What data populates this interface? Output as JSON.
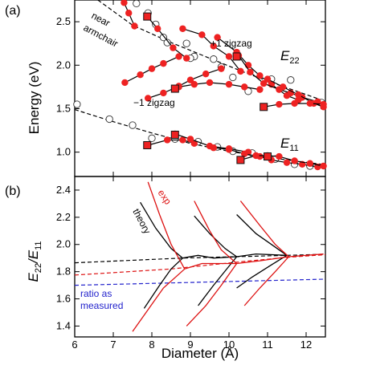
{
  "chart_data": [
    {
      "panel_label": "(a)",
      "type": "scatter",
      "ylabel": "Energy (eV)",
      "xlim": [
        6,
        12.5
      ],
      "ylim": [
        0.72,
        2.75
      ],
      "yticks": [
        "1.0",
        "1.5",
        "2.0",
        "2.5"
      ],
      "grid": false,
      "annotations": {
        "near": "near",
        "armchair": "armchair",
        "plus_zigzag": "+1 zigzag",
        "minus_zigzag": "−1 zigzag",
        "e22_main": "E",
        "e22_sub": "22",
        "e11_main": "E",
        "e11_sub": "11"
      },
      "armchair_line": [
        [
          6.6,
          2.75
        ],
        [
          7.5,
          2.46
        ],
        [
          8.5,
          2.26
        ],
        [
          9.5,
          2.08
        ],
        [
          10.5,
          1.9
        ],
        [
          11.5,
          1.74
        ],
        [
          12.4,
          1.6
        ]
      ],
      "e11_armchair_line": [
        [
          6.0,
          1.49
        ],
        [
          7.0,
          1.35
        ],
        [
          8.0,
          1.22
        ],
        [
          9.0,
          1.1
        ],
        [
          10.0,
          1.01
        ],
        [
          11.0,
          0.94
        ],
        [
          12.4,
          0.86
        ]
      ],
      "open_circles": [
        [
          6.06,
          1.55
        ],
        [
          6.9,
          1.38
        ],
        [
          7.5,
          1.31
        ],
        [
          8.0,
          1.16
        ],
        [
          8.6,
          1.15
        ],
        [
          9.2,
          1.12
        ],
        [
          9.7,
          1.06
        ],
        [
          10.1,
          1.01
        ],
        [
          10.6,
          0.99
        ],
        [
          11.2,
          0.92
        ],
        [
          11.7,
          0.86
        ],
        [
          12.1,
          0.84
        ],
        [
          12.4,
          1.57
        ],
        [
          11.6,
          1.83
        ],
        [
          11.1,
          1.84
        ],
        [
          10.5,
          1.7
        ],
        [
          10.1,
          1.86
        ],
        [
          9.6,
          2.07
        ],
        [
          9.1,
          2.1
        ],
        [
          8.9,
          2.25
        ],
        [
          8.4,
          2.26
        ],
        [
          8.1,
          2.47
        ],
        [
          7.9,
          2.6
        ],
        [
          7.6,
          2.71
        ],
        [
          8.3,
          2.32
        ],
        [
          9.0,
          2.08
        ],
        [
          9.8,
          1.98
        ]
      ],
      "families": [
        {
          "kind": "armchair",
          "points": [
            [
              7.28,
              2.72
            ],
            [
              7.4,
              2.6
            ],
            [
              7.55,
              2.45
            ]
          ]
        },
        {
          "kind": "plus1",
          "points": [
            [
              7.88,
              2.56
            ],
            [
              8.15,
              2.42
            ],
            [
              8.55,
              2.2
            ],
            [
              8.9,
              2.08
            ]
          ]
        },
        {
          "kind": "plus1",
          "points": [
            [
              8.8,
              2.42
            ],
            [
              9.3,
              2.35
            ],
            [
              9.6,
              2.22
            ],
            [
              10.0,
              2.1
            ],
            [
              10.3,
              1.93
            ]
          ]
        },
        {
          "kind": "plus1",
          "points": [
            [
              9.7,
              2.32
            ],
            [
              10.2,
              2.15
            ],
            [
              10.5,
              2.0
            ],
            [
              10.8,
              1.88
            ],
            [
              11.1,
              1.78
            ],
            [
              11.5,
              1.65
            ],
            [
              11.8,
              1.6
            ]
          ]
        },
        {
          "kind": "plus1",
          "points": [
            [
              10.25,
              2.11
            ],
            [
              10.55,
              1.92
            ],
            [
              10.9,
              1.79
            ],
            [
              11.3,
              1.72
            ],
            [
              11.6,
              1.68
            ],
            [
              11.9,
              1.63
            ],
            [
              12.3,
              1.58
            ]
          ]
        },
        {
          "kind": "plus1",
          "points": [
            [
              11.0,
              1.84
            ],
            [
              11.4,
              1.75
            ],
            [
              11.8,
              1.66
            ],
            [
              12.2,
              1.56
            ],
            [
              12.45,
              1.52
            ]
          ]
        },
        {
          "kind": "minus1",
          "points": [
            [
              7.3,
              1.8
            ],
            [
              7.7,
              1.89
            ],
            [
              8.0,
              1.96
            ],
            [
              8.3,
              2.02
            ],
            [
              8.7,
              2.1
            ]
          ]
        },
        {
          "kind": "minus1",
          "points": [
            [
              7.9,
              1.62
            ],
            [
              8.3,
              1.68
            ],
            [
              8.7,
              1.76
            ],
            [
              9.0,
              1.83
            ],
            [
              9.4,
              1.9
            ],
            [
              9.8,
              1.96
            ]
          ]
        },
        {
          "kind": "minus1",
          "points": [
            [
              8.7,
              1.75
            ],
            [
              9.1,
              1.78
            ],
            [
              9.5,
              1.8
            ],
            [
              10.0,
              1.78
            ],
            [
              10.4,
              1.75
            ],
            [
              10.8,
              1.72
            ]
          ]
        },
        {
          "kind": "minus1",
          "points": [
            [
              10.9,
              1.52
            ],
            [
              11.3,
              1.55
            ],
            [
              11.7,
              1.56
            ],
            [
              12.1,
              1.56
            ],
            [
              12.45,
              1.55
            ]
          ]
        },
        {
          "kind": "e11",
          "points": [
            [
              7.9,
              1.08
            ],
            [
              8.4,
              1.14
            ],
            [
              8.8,
              1.14
            ],
            [
              9.1,
              1.1
            ]
          ]
        },
        {
          "kind": "e11",
          "points": [
            [
              8.6,
              1.21
            ],
            [
              9.0,
              1.15
            ],
            [
              9.5,
              1.07
            ],
            [
              10.0,
              1.04
            ],
            [
              10.5,
              1.0
            ]
          ]
        },
        {
          "kind": "e11",
          "points": [
            [
              9.6,
              1.05
            ],
            [
              10.0,
              1.03
            ],
            [
              10.4,
              0.98
            ],
            [
              10.8,
              0.95
            ],
            [
              11.1,
              0.91
            ],
            [
              11.5,
              0.88
            ],
            [
              11.9,
              0.86
            ],
            [
              12.3,
              0.83
            ]
          ]
        },
        {
          "kind": "e11",
          "points": [
            [
              10.3,
              0.91
            ],
            [
              10.7,
              0.96
            ],
            [
              11.0,
              0.96
            ],
            [
              11.3,
              0.95
            ],
            [
              11.7,
              0.9
            ],
            [
              12.1,
              0.87
            ],
            [
              12.45,
              0.84
            ]
          ]
        }
      ],
      "squares": [
        [
          7.88,
          2.56
        ],
        [
          10.2,
          2.1
        ],
        [
          8.6,
          1.73
        ],
        [
          10.9,
          1.52
        ],
        [
          7.88,
          1.08
        ],
        [
          8.6,
          1.2
        ],
        [
          10.3,
          0.91
        ],
        [
          11.0,
          0.95
        ]
      ],
      "colors": {
        "filled": "#ee2222",
        "outline": "#111111"
      }
    },
    {
      "panel_label": "(b)",
      "type": "line",
      "xlabel": "Diameter (Å)",
      "ylabel_main": "E",
      "ylabel_sub1": "22",
      "ylabel_slash": "/E",
      "ylabel_sub2": "11",
      "xlim": [
        6,
        12.5
      ],
      "ylim": [
        1.32,
        2.5
      ],
      "xticks": [
        "6",
        "7",
        "8",
        "9",
        "10",
        "11",
        "12"
      ],
      "yticks": [
        "1.4",
        "1.6",
        "1.8",
        "2.0",
        "2.2",
        "2.4"
      ],
      "annotations": {
        "theory": "theory",
        "exp": "exp",
        "ratio_line1": "ratio as",
        "ratio_line2": "measured"
      },
      "dashed_lines": [
        {
          "name": "theory",
          "color": "#000000",
          "points": [
            [
              6.0,
              1.865
            ],
            [
              8.8,
              1.9
            ],
            [
              10.2,
              1.91
            ],
            [
              11.5,
              1.92
            ],
            [
              12.5,
              1.928
            ]
          ]
        },
        {
          "name": "exp",
          "color": "#dd1111",
          "points": [
            [
              6.0,
              1.775
            ],
            [
              8.5,
              1.82
            ],
            [
              10.2,
              1.87
            ],
            [
              11.5,
              1.905
            ],
            [
              12.5,
              1.925
            ]
          ]
        },
        {
          "name": "ratio as measured",
          "color": "#2222cc",
          "points": [
            [
              6.0,
              1.7
            ],
            [
              12.5,
              1.745
            ]
          ]
        }
      ],
      "theory_curves": [
        [
          [
            7.7,
            2.31
          ],
          [
            8.1,
            2.12
          ],
          [
            8.5,
            1.97
          ],
          [
            8.8,
            1.9
          ]
        ],
        [
          [
            7.8,
            1.53
          ],
          [
            8.2,
            1.7
          ],
          [
            8.5,
            1.82
          ],
          [
            8.8,
            1.9
          ]
        ],
        [
          [
            8.8,
            1.9
          ],
          [
            9.2,
            1.92
          ],
          [
            9.6,
            1.9
          ],
          [
            10.2,
            1.91
          ]
        ],
        [
          [
            9.1,
            2.21
          ],
          [
            9.5,
            2.08
          ],
          [
            9.9,
            1.97
          ],
          [
            10.2,
            1.91
          ]
        ],
        [
          [
            9.2,
            1.55
          ],
          [
            9.6,
            1.7
          ],
          [
            10.0,
            1.84
          ],
          [
            10.2,
            1.91
          ]
        ],
        [
          [
            10.2,
            1.91
          ],
          [
            10.7,
            1.93
          ],
          [
            11.5,
            1.92
          ]
        ],
        [
          [
            10.2,
            2.22
          ],
          [
            10.7,
            2.08
          ],
          [
            11.1,
            2.0
          ],
          [
            11.5,
            1.92
          ]
        ],
        [
          [
            10.2,
            1.68
          ],
          [
            10.6,
            1.76
          ],
          [
            11.1,
            1.85
          ],
          [
            11.5,
            1.92
          ]
        ]
      ],
      "exp_curves": [
        [
          [
            7.9,
            2.46
          ],
          [
            8.2,
            2.22
          ],
          [
            8.5,
            2.0
          ],
          [
            8.85,
            1.82
          ]
        ],
        [
          [
            7.5,
            1.36
          ],
          [
            7.9,
            1.52
          ],
          [
            8.3,
            1.68
          ],
          [
            8.85,
            1.82
          ]
        ],
        [
          [
            8.85,
            1.82
          ],
          [
            9.3,
            1.86
          ],
          [
            10.2,
            1.86
          ]
        ],
        [
          [
            9.1,
            2.32
          ],
          [
            9.5,
            2.1
          ],
          [
            9.8,
            1.96
          ],
          [
            10.2,
            1.86
          ]
        ],
        [
          [
            8.9,
            1.4
          ],
          [
            9.4,
            1.55
          ],
          [
            9.8,
            1.7
          ],
          [
            10.2,
            1.86
          ]
        ],
        [
          [
            10.2,
            1.86
          ],
          [
            10.8,
            1.88
          ],
          [
            11.55,
            1.91
          ]
        ],
        [
          [
            10.3,
            2.32
          ],
          [
            10.8,
            2.14
          ],
          [
            11.2,
            2.0
          ],
          [
            11.55,
            1.91
          ]
        ],
        [
          [
            10.4,
            1.55
          ],
          [
            10.8,
            1.68
          ],
          [
            11.2,
            1.8
          ],
          [
            11.55,
            1.91
          ]
        ],
        [
          [
            11.55,
            1.91
          ],
          [
            12.0,
            1.92
          ],
          [
            12.45,
            1.93
          ]
        ]
      ],
      "colors": {
        "theory": "#000000",
        "exp": "#dd1111",
        "ratio": "#2222cc"
      }
    }
  ]
}
